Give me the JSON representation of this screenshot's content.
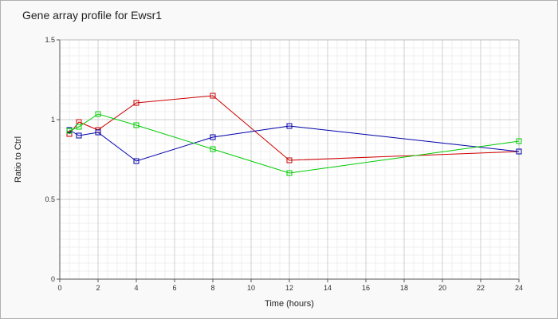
{
  "chart_data": {
    "type": "line",
    "title": "Gene array profile for Ewsr1",
    "xlabel": "Time (hours)",
    "ylabel": "Ratio to Ctrl",
    "xlim": [
      0,
      24
    ],
    "ylim": [
      0,
      1.5
    ],
    "x_ticks": [
      "0",
      "2",
      "4",
      "6",
      "8",
      "10",
      "12",
      "14",
      "16",
      "18",
      "20",
      "22",
      "24"
    ],
    "y_ticks": [
      "0",
      "0.5",
      "1",
      "1.5"
    ],
    "grid": true,
    "legend": "none",
    "series": [
      {
        "color": "#cc0000",
        "marker": "square",
        "x": [
          0.5,
          1,
          2,
          4,
          8,
          12,
          24
        ],
        "y": [
          0.91,
          0.985,
          0.935,
          1.105,
          1.15,
          0.745,
          0.8
        ]
      },
      {
        "color": "#0000aa",
        "marker": "square",
        "x": [
          0.5,
          1,
          2,
          4,
          8,
          12,
          24
        ],
        "y": [
          0.935,
          0.9,
          0.92,
          0.74,
          0.89,
          0.96,
          0.8
        ]
      },
      {
        "color": "#00cc00",
        "marker": "square",
        "x": [
          0.5,
          1,
          2,
          4,
          8,
          12,
          24
        ],
        "y": [
          0.93,
          0.955,
          1.035,
          0.965,
          0.815,
          0.665,
          0.865
        ]
      }
    ]
  }
}
